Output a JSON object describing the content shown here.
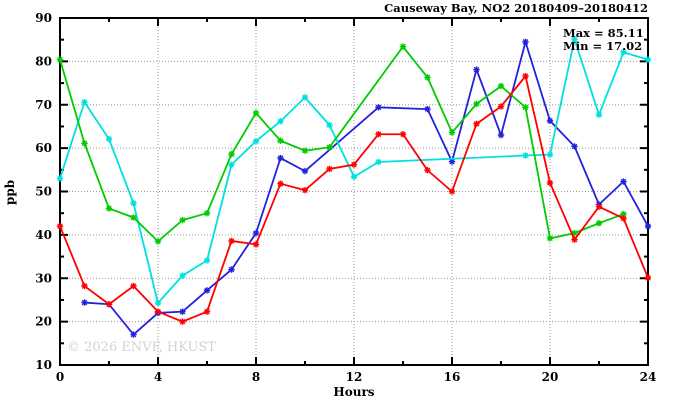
{
  "chart": {
    "title": "Causeway Bay, NO2 20180409–20180412",
    "max_label": "Max = 85.11",
    "min_label": "Min = 17.02",
    "watermark": "© 2026 ENVF, HKUST",
    "xlabel": "Hours",
    "ylabel": "ppb"
  },
  "chart_data": {
    "type": "line",
    "title": "Causeway Bay, NO2 20180409–20180412",
    "xlabel": "Hours",
    "ylabel": "ppb",
    "xlim": [
      0,
      24
    ],
    "ylim": [
      10,
      90
    ],
    "xticks": [
      0,
      4,
      8,
      12,
      16,
      20,
      24
    ],
    "yticks": [
      10,
      20,
      30,
      40,
      50,
      60,
      70,
      80,
      90
    ],
    "x_minor_step": 2,
    "y_minor_step": 5,
    "grid": true,
    "grid_color": "#999999",
    "legend_position": "none",
    "annotations": {
      "max": 85.11,
      "min": 17.02
    },
    "marker": "star",
    "series": [
      {
        "name": "series-blue",
        "color": "#2222dd",
        "points": [
          [
            1,
            24.4
          ],
          [
            2,
            24.0
          ],
          [
            3,
            17.02
          ],
          [
            4,
            22.0
          ],
          [
            5,
            22.3
          ],
          [
            6,
            27.2
          ],
          [
            7,
            32.0
          ],
          [
            8,
            40.4
          ],
          [
            9,
            57.7
          ],
          [
            10,
            54.7
          ],
          [
            13,
            69.4
          ],
          [
            15,
            69.0
          ],
          [
            16,
            56.9
          ],
          [
            17,
            78.1
          ],
          [
            18,
            63.0
          ],
          [
            19,
            84.5
          ],
          [
            20,
            66.3
          ],
          [
            21,
            60.4
          ],
          [
            22,
            47.0
          ],
          [
            23,
            52.3
          ],
          [
            24,
            42.0
          ]
        ]
      },
      {
        "name": "series-cyan",
        "color": "#00e0e0",
        "points": [
          [
            0,
            53.0
          ],
          [
            1,
            70.6
          ],
          [
            2,
            62.1
          ],
          [
            3,
            47.3
          ],
          [
            4,
            24.3
          ],
          [
            5,
            30.6
          ],
          [
            6,
            34.1
          ],
          [
            7,
            56.2
          ],
          [
            8,
            61.6
          ],
          [
            9,
            66.2
          ],
          [
            10,
            71.7
          ],
          [
            11,
            65.3
          ],
          [
            12,
            53.4
          ],
          [
            13,
            56.8
          ],
          [
            19,
            58.3
          ],
          [
            20,
            58.5
          ],
          [
            21,
            85.11
          ],
          [
            22,
            67.7
          ],
          [
            23,
            82.1
          ],
          [
            24,
            80.4
          ]
        ]
      },
      {
        "name": "series-green",
        "color": "#00cc00",
        "points": [
          [
            0,
            80.4
          ],
          [
            1,
            61.1
          ],
          [
            2,
            46.1
          ],
          [
            3,
            44.0
          ],
          [
            4,
            38.5
          ],
          [
            5,
            43.4
          ],
          [
            6,
            45.0
          ],
          [
            7,
            58.6
          ],
          [
            8,
            68.1
          ],
          [
            9,
            61.7
          ],
          [
            10,
            59.4
          ],
          [
            11,
            60.2
          ],
          [
            14,
            83.4
          ],
          [
            15,
            76.3
          ],
          [
            16,
            63.6
          ],
          [
            17,
            70.2
          ],
          [
            18,
            74.3
          ],
          [
            19,
            69.4
          ],
          [
            20,
            39.2
          ],
          [
            21,
            40.4
          ],
          [
            22,
            42.7
          ],
          [
            23,
            44.8
          ]
        ]
      },
      {
        "name": "series-red",
        "color": "#ff0000",
        "points": [
          [
            0,
            42.0
          ],
          [
            1,
            28.2
          ],
          [
            2,
            24.0
          ],
          [
            3,
            28.2
          ],
          [
            4,
            22.3
          ],
          [
            5,
            20.0
          ],
          [
            6,
            22.3
          ],
          [
            7,
            38.6
          ],
          [
            8,
            37.8
          ],
          [
            9,
            51.8
          ],
          [
            10,
            50.3
          ],
          [
            11,
            55.2
          ],
          [
            12,
            56.2
          ],
          [
            13,
            63.2
          ],
          [
            14,
            63.2
          ],
          [
            15,
            54.9
          ],
          [
            16,
            50.0
          ],
          [
            17,
            65.6
          ],
          [
            18,
            69.6
          ],
          [
            19,
            76.6
          ],
          [
            20,
            52.0
          ],
          [
            21,
            38.9
          ],
          [
            22,
            46.5
          ],
          [
            23,
            43.8
          ],
          [
            24,
            30.1
          ]
        ]
      }
    ]
  }
}
